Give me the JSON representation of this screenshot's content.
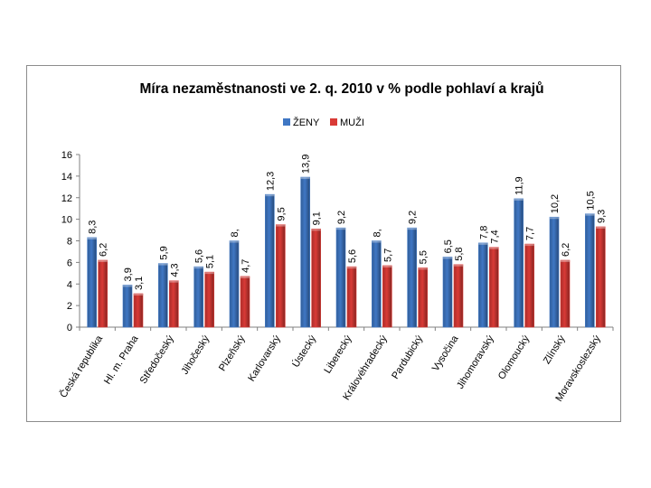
{
  "chart_data": {
    "type": "bar",
    "title": "Míra nezaměstnanosti ve 2. q. 2010 v % podle pohlaví a krajů",
    "xlabel": "",
    "ylabel": "",
    "ylim": [
      0,
      16
    ],
    "yticks": [
      0,
      2,
      4,
      6,
      8,
      10,
      12,
      14,
      16
    ],
    "ytick_labels": [
      "0",
      "2",
      "4",
      "6",
      "8",
      "10",
      "12",
      "14",
      "16"
    ],
    "grid": false,
    "legend": "top-center",
    "categories": [
      "Česká republika",
      "Hl. m. Praha",
      "Středočeský",
      "Jihočeský",
      "Plzeňský",
      "Karlovarský",
      "Ústecký",
      "Liberecký",
      "Královéhradecký",
      "Pardubický",
      "Vysočina",
      "Jihomoravský",
      "Olomoucký",
      "Zlínský",
      "Moravskoslezský"
    ],
    "series": [
      {
        "name": "ŽENY",
        "color": "#3f77c4",
        "values": [
          8.3,
          3.9,
          5.9,
          5.6,
          8.0,
          12.3,
          13.9,
          9.2,
          8.0,
          9.2,
          6.5,
          7.8,
          11.9,
          10.2,
          10.5
        ],
        "labels": [
          "8,3",
          "3,9",
          "5,9",
          "5,6",
          "8,",
          "12,3",
          "13,9",
          "9,2",
          "8,",
          "9,2",
          "6,5",
          "7,8",
          "11,9",
          "10,2",
          "10,5"
        ]
      },
      {
        "name": "MUŽI",
        "color": "#d93a36",
        "values": [
          6.2,
          3.1,
          4.3,
          5.1,
          4.7,
          9.5,
          9.1,
          5.6,
          5.7,
          5.5,
          5.8,
          7.4,
          7.7,
          6.2,
          9.3
        ],
        "labels": [
          "6,2",
          "3,1",
          "4,3",
          "5,1",
          "4,7",
          "9,5",
          "9,1",
          "5,6",
          "5,7",
          "5,5",
          "5,8",
          "7,4",
          "7,7",
          "6,2",
          "9,3"
        ]
      }
    ]
  }
}
